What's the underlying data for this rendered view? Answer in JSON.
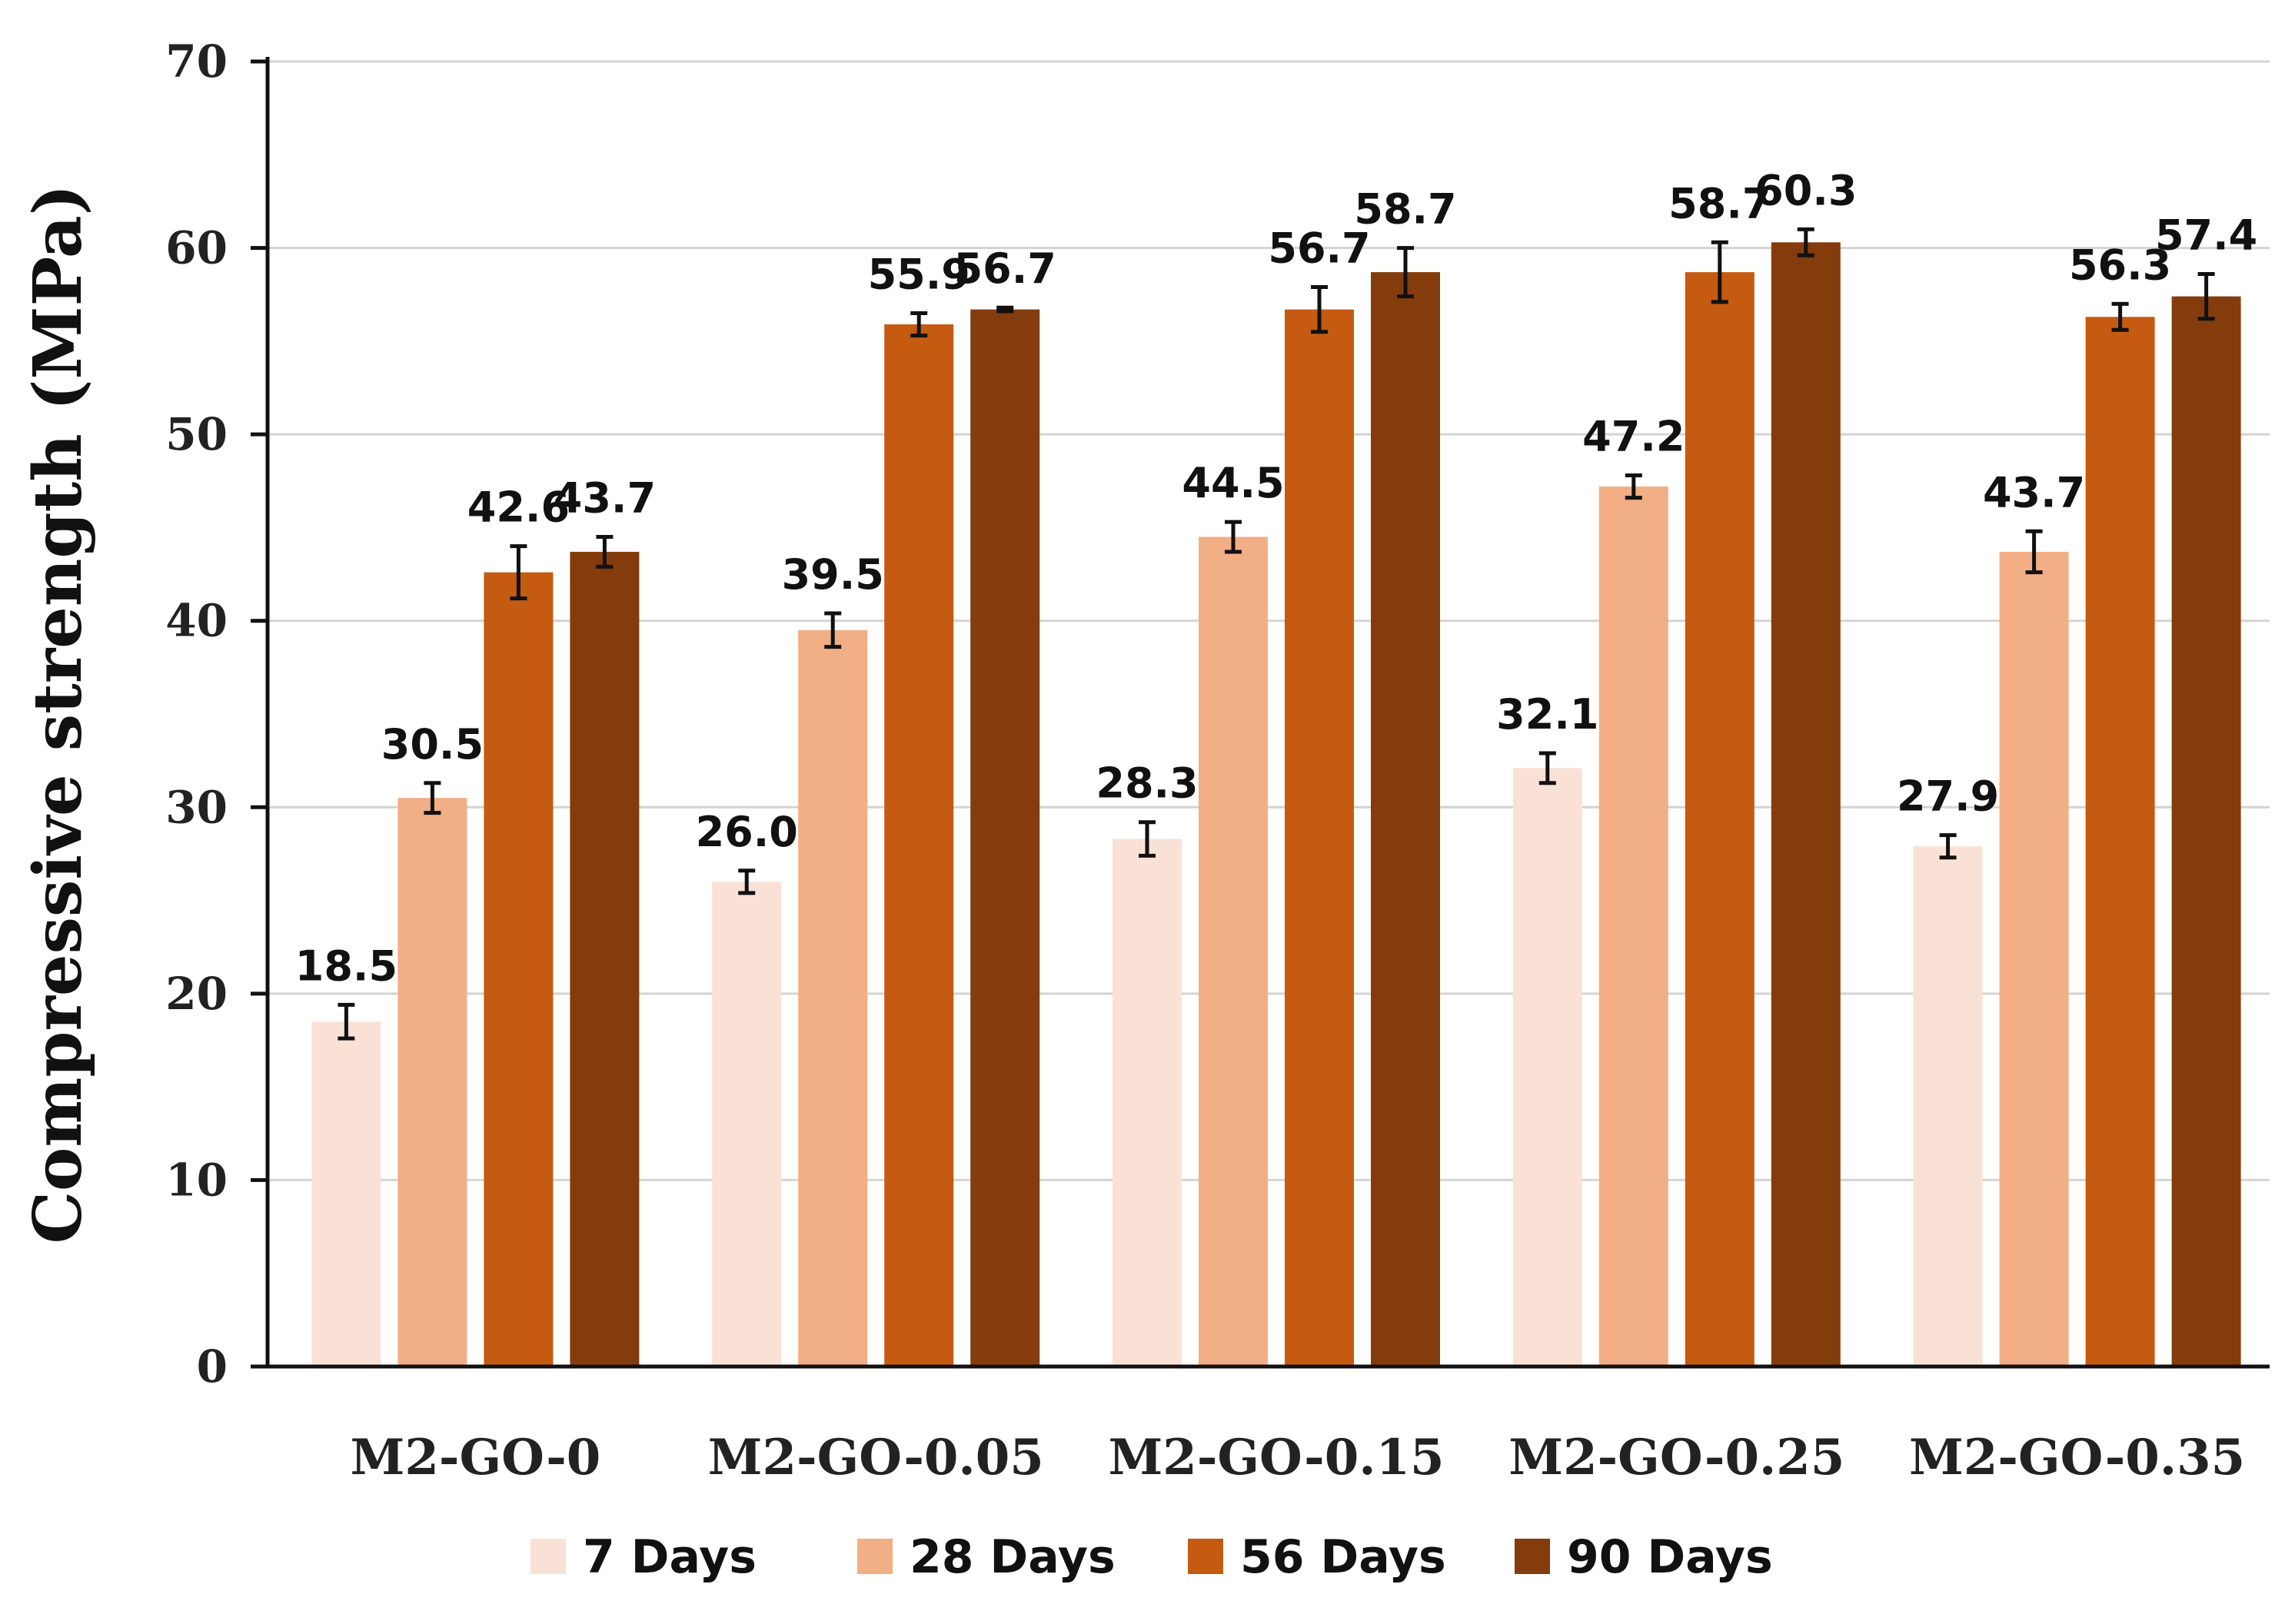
{
  "chart_data": {
    "type": "bar",
    "title": "",
    "xlabel": "",
    "ylabel": "Compressive strength (MPa)",
    "ylim": [
      0,
      70
    ],
    "yticks": [
      "0",
      "10",
      "20",
      "30",
      "40",
      "50",
      "60",
      "70"
    ],
    "grid": true,
    "legend_position": "bottom",
    "categories": [
      "M2-GO-0",
      "M2-GO-0.05",
      "M2-GO-0.15",
      "M2-GO-0.25",
      "M2-GO-0.35"
    ],
    "series": [
      {
        "name": "7 Days",
        "color": "#F9E2D5",
        "values": [
          18.5,
          26.0,
          28.3,
          32.1,
          27.9
        ],
        "labels": [
          "18.5",
          "26.0",
          "28.3",
          "32.1",
          "27.9"
        ],
        "errors": [
          0.9,
          0.6,
          0.9,
          0.8,
          0.6
        ]
      },
      {
        "name": "28 Days",
        "color": "#F2AE85",
        "values": [
          30.5,
          39.5,
          44.5,
          47.2,
          43.7
        ],
        "labels": [
          "30.5",
          "39.5",
          "44.5",
          "47.2",
          "43.7"
        ],
        "errors": [
          0.8,
          0.9,
          0.8,
          0.6,
          1.1
        ]
      },
      {
        "name": "56 Days",
        "color": "#C55A11",
        "values": [
          42.6,
          55.9,
          56.7,
          58.7,
          56.3
        ],
        "labels": [
          "42.6",
          "55.9",
          "56.7",
          "58.7",
          "56.3"
        ],
        "errors": [
          1.4,
          0.6,
          1.2,
          1.6,
          0.7
        ]
      },
      {
        "name": "90 Days",
        "color": "#843C0C",
        "values": [
          43.7,
          56.7,
          58.7,
          60.3,
          57.4
        ],
        "labels": [
          "43.7",
          "56.7",
          "58.7",
          "60.3",
          "57.4"
        ],
        "errors": [
          0.8,
          0.1,
          1.3,
          0.7,
          1.2
        ]
      }
    ]
  }
}
